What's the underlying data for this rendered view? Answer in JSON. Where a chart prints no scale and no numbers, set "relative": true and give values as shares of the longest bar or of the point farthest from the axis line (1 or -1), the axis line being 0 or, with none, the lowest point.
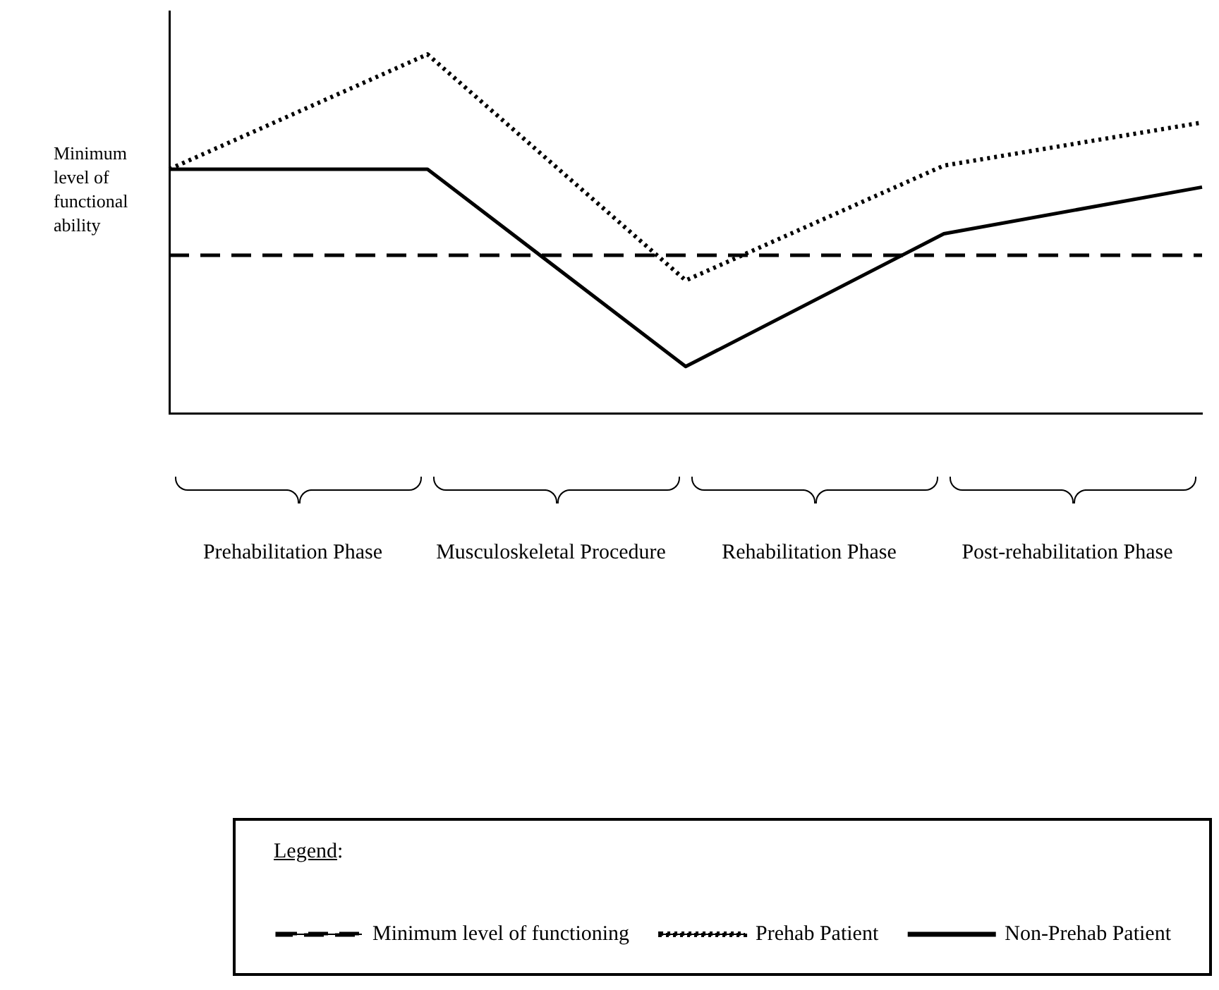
{
  "chart_data": {
    "type": "line",
    "ylabel": "Minimum level of functional ability",
    "legend_title": "Legend:",
    "legend": "bottom right",
    "marker": "none",
    "relative": true,
    "categories": [
      null,
      null,
      null,
      null,
      null
    ],
    "annotations": [
      "Prehabilitation Phase",
      "Musculoskeletal Procedure",
      "Rehabilitation Phase",
      "Post-rehabilitation Phase"
    ],
    "ref_lines": [
      {
        "axis": "y",
        "value": 0.44,
        "label": "Minimum level of functioning",
        "color": "#000000",
        "line_style": "dashed"
      }
    ],
    "series": [
      {
        "name": "Prehab Patient",
        "color": "#000000",
        "line_style": "dotted",
        "values": [
          0.68,
          1,
          0.37,
          0.69,
          0.81
        ]
      },
      {
        "name": "Non-Prehab Patient",
        "color": "#000000",
        "line_style": "solid",
        "values": [
          0.68,
          0.68,
          0.13,
          0.5,
          0.63
        ]
      }
    ]
  }
}
